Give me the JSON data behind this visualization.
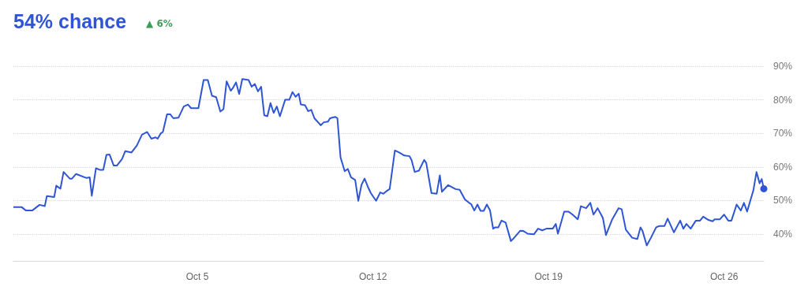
{
  "chart_data": {
    "type": "line",
    "title": "54% chance",
    "annotations": [
      "▲ 6%"
    ],
    "x": [
      "--09-27T16:00",
      "--09-28T00:00",
      "--09-28T04:00",
      "--09-28T10:00",
      "--09-28T17:00",
      "--09-28T22:00",
      "--09-29T00:00",
      "--09-29T07:00",
      "--09-29T09:00",
      "--09-29T13:00",
      "--09-29T16:00",
      "--09-29T22:00",
      "--09-30T00:00",
      "--09-30T04:00",
      "--09-30T14:00",
      "--09-30T17:00",
      "--09-30T19:00",
      "--09-30T23:00",
      "--10-01T03:00",
      "--10-01T06:00",
      "--10-01T09:00",
      "--10-01T12:00",
      "--10-01T16:00",
      "--10-01T19:00",
      "--10-02T00:00",
      "--10-02T03:00",
      "--10-02T09:00",
      "--10-02T14:00",
      "--10-02T19:00",
      "--10-03T00:00",
      "--10-03T04:00",
      "--10-03T08:00",
      "--10-03T10:00",
      "--10-03T13:00",
      "--10-03T15:00",
      "--10-03T19:00",
      "--10-03T22:00",
      "--10-04T01:00",
      "--10-04T06:00",
      "--10-04T11:00",
      "--10-04T15:00",
      "--10-04T18:00",
      "--10-05T01:00",
      "--10-05T06:00",
      "--10-05T10:00",
      "--10-05T14:00",
      "--10-05T18:00",
      "--10-05T22:00",
      "--10-06T01:00",
      "--10-06T04:00",
      "--10-06T08:00",
      "--10-06T10:00",
      "--10-06T13:00",
      "--10-06T16:00",
      "--10-06T19:00",
      "--10-07T01:00",
      "--10-07T04:00",
      "--10-07T07:00",
      "--10-07T10:00",
      "--10-07T13:00",
      "--10-07T16:00",
      "--10-07T19:00",
      "--10-07T22:00",
      "--10-08T01:00",
      "--10-08T04:00",
      "--10-08T07:00",
      "--10-08T12:00",
      "--10-08T16:00",
      "--10-08T19:00",
      "--10-08T22:00",
      "--10-09T01:00",
      "--10-09T03:00",
      "--10-09T07:00",
      "--10-09T10:00",
      "--10-09T13:00",
      "--10-09T16:00",
      "--10-09T22:00",
      "--10-10T01:00",
      "--10-10T05:00",
      "--10-10T07:00",
      "--10-10T12:00",
      "--10-10T14:00",
      "--10-10T17:00",
      "--10-10T21:00",
      "--10-11T00:00",
      "--10-11T03:00",
      "--10-11T07:00",
      "--10-11T10:00",
      "--10-11T13:00",
      "--10-11T16:00",
      "--10-11T19:00",
      "--10-11T22:00",
      "--10-12T03:00",
      "--10-12T07:00",
      "--10-12T10:00",
      "--10-12T13:00",
      "--10-12T16:00",
      "--10-12T21:00",
      "--10-13T01:00",
      "--10-13T06:00",
      "--10-13T11:00",
      "--10-13T13:00",
      "--10-13T16:00",
      "--10-13T20:00",
      "--10-14T01:00",
      "--10-14T03:00",
      "--10-14T08:00",
      "--10-14T13:00",
      "--10-14T16:00",
      "--10-14T18:00",
      "--10-15T00:00",
      "--10-15T07:00",
      "--10-15T11:00",
      "--10-15T16:00",
      "--10-15T20:00",
      "--10-15T22:00",
      "--10-16T01:00",
      "--10-16T04:00",
      "--10-16T07:00",
      "--10-16T10:00",
      "--10-16T13:00",
      "--10-16T16:00",
      "--10-16T19:00",
      "--10-16T21:00",
      "--10-17T00:00",
      "--10-17T03:00",
      "--10-17T07:00",
      "--10-17T12:00",
      "--10-17T14:00",
      "--10-17T21:00",
      "--10-18T00:00",
      "--10-18T04:00",
      "--10-18T10:00",
      "--10-18T14:00",
      "--10-18T18:00",
      "--10-18T22:00",
      "--10-19T04:00",
      "--10-19T07:00",
      "--10-19T09:00",
      "--10-19T15:00",
      "--10-19T19:00",
      "--10-19T23:00",
      "--10-20T04:00",
      "--10-20T07:00",
      "--10-20T12:00",
      "--10-20T16:00",
      "--10-20T19:00",
      "--10-20T23:00",
      "--10-21T04:00",
      "--10-21T07:00",
      "--10-21T13:00",
      "--10-21T19:00",
      "--10-21T22:00",
      "--10-22T02:00",
      "--10-22T08:00",
      "--10-22T13:00",
      "--10-22T16:00",
      "--10-22T18:00",
      "--10-22T22:00",
      "--10-23T02:00",
      "--10-23T07:00",
      "--10-23T10:00",
      "--10-23T15:00",
      "--10-23T18:00",
      "--10-24T00:00",
      "--10-24T06:00",
      "--10-24T09:00",
      "--10-24T12:00",
      "--10-24T16:00",
      "--10-24T21:00",
      "--10-25T01:00",
      "--10-25T04:00",
      "--10-25T09:00",
      "--10-25T13:00",
      "--10-25T15:00",
      "--10-25T20:00",
      "--10-26T00:00",
      "--10-26T04:00",
      "--10-26T07:00",
      "--10-26T12:00",
      "--10-26T16:00",
      "--10-26T19:00",
      "--10-26T22:00",
      "--10-27T04:00",
      "--10-27T07:00",
      "--10-27T10:00",
      "--10-27T12:00",
      "--10-27T14:00"
    ],
    "series": [
      {
        "color": "#2f55d4",
        "values": [
          48,
          48,
          47,
          47,
          48.7,
          48.3,
          51.3,
          51,
          54.4,
          53.5,
          58.5,
          56.5,
          56.5,
          57.9,
          56.7,
          56.9,
          51.4,
          59.6,
          59.1,
          59.1,
          63.6,
          63.7,
          60.4,
          60.4,
          62.4,
          64.7,
          64.3,
          66.3,
          69.6,
          70.4,
          68.4,
          68.8,
          68.4,
          70,
          70.4,
          75.7,
          75.7,
          74.5,
          74.7,
          78,
          78.6,
          77.5,
          77.5,
          85.9,
          85.9,
          81.2,
          80.8,
          76.5,
          77.2,
          85.5,
          82.7,
          83.5,
          85.2,
          81.7,
          86.2,
          85.9,
          83.9,
          84.7,
          82.5,
          83.9,
          75.4,
          75.1,
          79,
          76.1,
          78,
          75.1,
          80,
          80,
          82.3,
          80.9,
          81.8,
          78.6,
          78.4,
          76.6,
          77,
          74.5,
          72.4,
          73.3,
          73.5,
          74.5,
          74.9,
          74.5,
          62.8,
          58.7,
          59.4,
          56.9,
          56.1,
          49.9,
          54.6,
          56.5,
          54.2,
          52.2,
          49.9,
          52.4,
          52,
          52.8,
          53.4,
          64.9,
          64.3,
          63.4,
          63.2,
          62,
          58.5,
          58.9,
          62.1,
          61.2,
          52.2,
          52,
          57.5,
          52.6,
          54.6,
          53.4,
          53.2,
          50.3,
          49.3,
          48.9,
          47,
          48.8,
          46.9,
          46.9,
          48.8,
          47.1,
          41.6,
          42,
          42,
          44,
          43.4,
          37.9,
          38.5,
          41,
          40.9,
          40.1,
          39.9,
          41.6,
          41.1,
          41.6,
          41.6,
          43,
          40.1,
          46.7,
          46.7,
          45.8,
          44.4,
          48.3,
          47.7,
          49.3,
          45.8,
          47.7,
          44.8,
          39.7,
          44.4,
          47.7,
          47.4,
          41.3,
          38.9,
          38.5,
          42,
          40.9,
          36.6,
          38.9,
          42,
          42.4,
          42.4,
          44.6,
          40.5,
          44,
          41.6,
          43,
          41.6,
          44,
          44,
          45.2,
          44.2,
          43.8,
          44.4,
          44.4,
          45.8,
          44,
          44,
          48.8,
          47,
          49.3,
          46.7,
          53,
          58.5,
          55.1,
          56.4,
          53.5
        ]
      }
    ],
    "xlim": [
      "--09-27T16:00",
      "--10-27T14:00"
    ],
    "xticks": [
      {
        "value": "--10-05",
        "label": "Oct 5"
      },
      {
        "value": "--10-12",
        "label": "Oct 12"
      },
      {
        "value": "--10-19",
        "label": "Oct 19"
      },
      {
        "value": "--10-26",
        "label": "Oct 26"
      }
    ],
    "ylim": [
      32,
      90
    ],
    "yticks": [
      {
        "value": 40,
        "label": "40%"
      },
      {
        "value": 50,
        "label": "50%"
      },
      {
        "value": 60,
        "label": "60%"
      },
      {
        "value": 70,
        "label": "70%"
      },
      {
        "value": 80,
        "label": "80%"
      },
      {
        "value": 90,
        "label": "90%"
      }
    ],
    "grid": "y"
  }
}
